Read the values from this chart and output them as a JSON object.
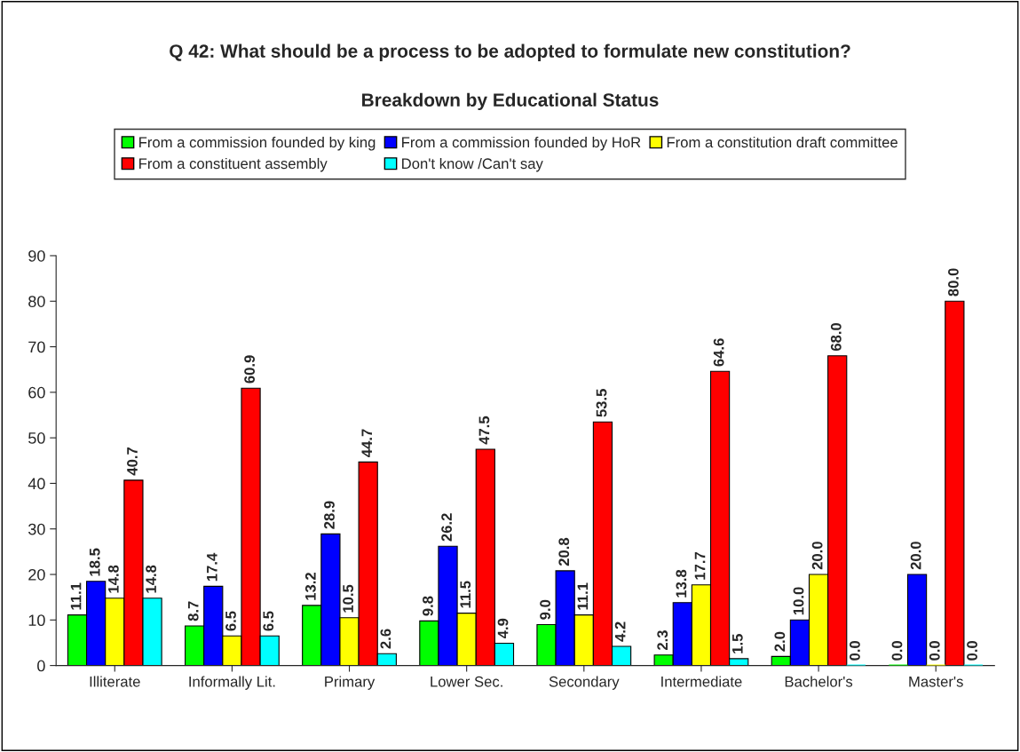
{
  "chart_data": {
    "type": "bar",
    "title": "Q 42: What should be a process to be adopted to formulate new constitution?",
    "subtitle": "Breakdown by Educational Status",
    "categories": [
      "Illiterate",
      "Informally Lit.",
      "Primary",
      "Lower Sec.",
      "Secondary",
      "Intermediate",
      "Bachelor's",
      "Master's"
    ],
    "series": [
      {
        "name": "From a commission founded by king",
        "color": "#00ff00",
        "values": [
          11.1,
          8.7,
          13.2,
          9.8,
          9,
          2.3,
          2,
          0
        ],
        "value_labels": [
          "11.1",
          "8.7",
          "13.2",
          "9.8",
          "9.0",
          "2.3",
          "2.0",
          "0.0"
        ]
      },
      {
        "name": "From a commission founded by HoR",
        "color": "#0000ff",
        "values": [
          18.5,
          17.4,
          28.9,
          26.2,
          20.8,
          13.8,
          10,
          20
        ],
        "value_labels": [
          "18.5",
          "17.4",
          "28.9",
          "26.2",
          "20.8",
          "13.8",
          "10.0",
          "20.0"
        ]
      },
      {
        "name": "From a constitution draft committee",
        "color": "#ffff00",
        "values": [
          14.8,
          6.5,
          10.5,
          11.5,
          11.1,
          17.7,
          20,
          0
        ],
        "value_labels": [
          "14.8",
          "6.5",
          "10.5",
          "11.5",
          "11.1",
          "17.7",
          "20.0",
          "0.0"
        ]
      },
      {
        "name": "From a constituent assembly",
        "color": "#ff0000",
        "values": [
          40.7,
          60.9,
          44.7,
          47.5,
          53.5,
          64.6,
          68,
          80
        ],
        "value_labels": [
          "40.7",
          "60.9",
          "44.7",
          "47.5",
          "53.5",
          "64.6",
          "68.0",
          "80.0"
        ]
      },
      {
        "name": "Don't know /Can't say",
        "color": "#00ffff",
        "values": [
          14.8,
          6.5,
          2.6,
          4.9,
          4.2,
          1.5,
          0,
          0
        ],
        "value_labels": [
          "14.8",
          "6.5",
          "2.6",
          "4.9",
          "4.2",
          "1.5",
          "0.0",
          "0.0"
        ]
      }
    ],
    "ylim": [
      0,
      90
    ],
    "yticks": [
      0,
      10,
      20,
      30,
      40,
      50,
      60,
      70,
      80,
      90
    ],
    "legend": "top",
    "grid": false
  }
}
